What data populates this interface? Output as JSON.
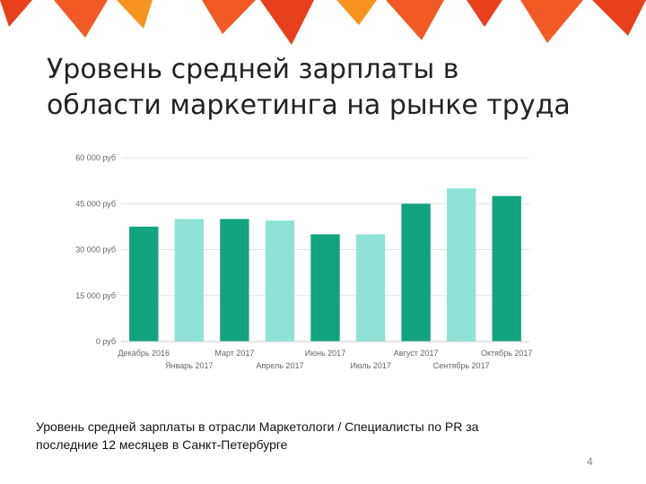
{
  "slide": {
    "title_line1": "Уровень средней зарплаты в",
    "title_line2": "области маркетинга на рынке труда",
    "caption_line1": "Уровень средней зарплаты в отрасли Маркетологи / Специалисты по PR за",
    "caption_line2": "последние 12 месяцев в Санкт-Петербурге",
    "page_number": "4",
    "decor_colors": [
      "#f15a24",
      "#e8401c",
      "#f7931e"
    ]
  },
  "chart_data": {
    "type": "bar",
    "title": "",
    "xlabel": "",
    "ylabel": "",
    "ylim": [
      0,
      60000
    ],
    "yticks": [
      0,
      15000,
      30000,
      45000,
      60000
    ],
    "ytick_labels": [
      "0 руб",
      "15 000 руб",
      "30 000 руб",
      "45 000 руб",
      "60 000 руб"
    ],
    "grid": true,
    "categories": [
      "Декабрь 2016",
      "Январь 2017",
      "Март 2017",
      "Апрель 2017",
      "Июнь 2017",
      "Июль 2017",
      "Август 2017",
      "Сентябрь 2017",
      "Октябрь 2017"
    ],
    "values": [
      37500,
      40000,
      40000,
      39500,
      35000,
      35000,
      45000,
      50000,
      47500
    ],
    "colors": [
      "#12a37f",
      "#8fe3d6",
      "#12a37f",
      "#8fe3d6",
      "#12a37f",
      "#8fe3d6",
      "#12a37f",
      "#8fe3d6",
      "#12a37f"
    ]
  }
}
